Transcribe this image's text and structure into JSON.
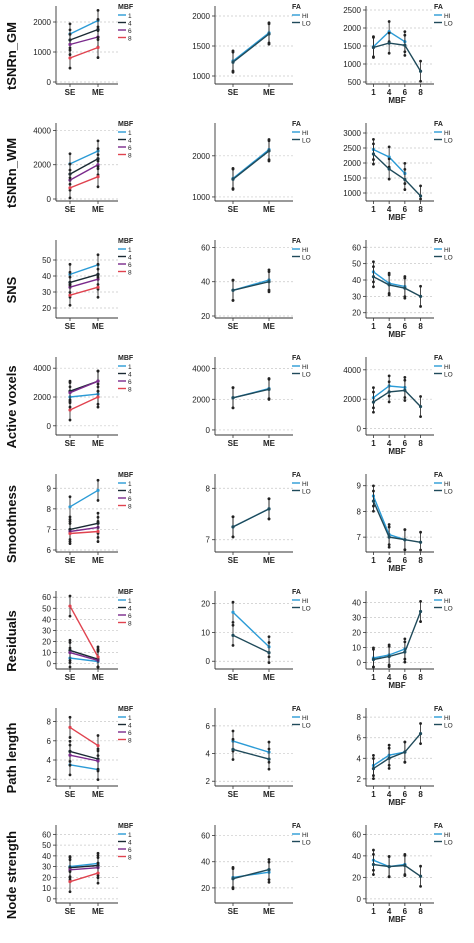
{
  "row_labels": [
    "tSNRn_GM",
    "tSNRn_WM",
    "SNS",
    "Active voxels",
    "Smoothness",
    "Residuals",
    "Path length",
    "Node strength"
  ],
  "legend_titles": {
    "mbf": "MBF",
    "fa": "FA"
  },
  "legend_mbf": [
    "1",
    "4",
    "6",
    "8"
  ],
  "legend_fa": [
    "HI",
    "LO"
  ],
  "colors": {
    "mbf_1": "#2b9bd6",
    "mbf_4": "#1a2a33",
    "mbf_6": "#7a2a8c",
    "mbf_8": "#e0434f",
    "fa_hi": "#2b9bd6",
    "fa_lo": "#1f4a5a",
    "grid": "#c8c8c8",
    "axis": "#333333"
  },
  "chart_data": [
    {
      "row": "tSNRn_GM",
      "col": "MBF by SE/ME",
      "type": "line",
      "categories": [
        "SE",
        "ME"
      ],
      "yticks": [
        0,
        1000,
        2000
      ],
      "ylim": [
        0,
        2400
      ],
      "series": [
        {
          "name": "1",
          "values": [
            1600,
            2050
          ]
        },
        {
          "name": "4",
          "values": [
            1400,
            1750
          ]
        },
        {
          "name": "6",
          "values": [
            1250,
            1500
          ]
        },
        {
          "name": "8",
          "values": [
            800,
            1150
          ]
        }
      ]
    },
    {
      "row": "tSNRn_GM",
      "col": "FA by SE/ME",
      "type": "line",
      "categories": [
        "SE",
        "ME"
      ],
      "yticks": [
        1000,
        1500,
        2000
      ],
      "ylim": [
        900,
        2100
      ],
      "series": [
        {
          "name": "HI",
          "values": [
            1250,
            1720
          ]
        },
        {
          "name": "LO",
          "values": [
            1230,
            1700
          ]
        }
      ]
    },
    {
      "row": "tSNRn_GM",
      "col": "FA by MBF",
      "type": "line",
      "categories": [
        "1",
        "4",
        "6",
        "8"
      ],
      "xlabel": "MBF",
      "yticks": [
        500,
        1000,
        1500,
        2000,
        2500
      ],
      "ylim": [
        500,
        2500
      ],
      "series": [
        {
          "name": "HI",
          "values": [
            1480,
            1900,
            1620,
            null
          ]
        },
        {
          "name": "LO",
          "values": [
            1460,
            1580,
            1520,
            800
          ]
        }
      ]
    },
    {
      "row": "tSNRn_WM",
      "col": "MBF by SE/ME",
      "type": "line",
      "categories": [
        "SE",
        "ME"
      ],
      "yticks": [
        0,
        2000,
        4000
      ],
      "ylim": [
        0,
        4200
      ],
      "series": [
        {
          "name": "1",
          "values": [
            2050,
            2800
          ]
        },
        {
          "name": "4",
          "values": [
            1450,
            2350
          ]
        },
        {
          "name": "6",
          "values": [
            1100,
            2000
          ]
        },
        {
          "name": "8",
          "values": [
            650,
            1300
          ]
        }
      ]
    },
    {
      "row": "tSNRn_WM",
      "col": "FA by SE/ME",
      "type": "line",
      "categories": [
        "SE",
        "ME"
      ],
      "yticks": [
        1000,
        2000
      ],
      "ylim": [
        950,
        2700
      ],
      "series": [
        {
          "name": "HI",
          "values": [
            1450,
            2150
          ]
        },
        {
          "name": "LO",
          "values": [
            1430,
            2120
          ]
        }
      ]
    },
    {
      "row": "tSNRn_WM",
      "col": "FA by MBF",
      "type": "line",
      "categories": [
        "1",
        "4",
        "6",
        "8"
      ],
      "xlabel": "MBF",
      "yticks": [
        1000,
        1500,
        2000,
        2500,
        3000
      ],
      "ylim": [
        800,
        3200
      ],
      "series": [
        {
          "name": "HI",
          "values": [
            2450,
            2200,
            1650,
            null
          ]
        },
        {
          "name": "LO",
          "values": [
            2300,
            1800,
            1450,
            900
          ]
        }
      ]
    },
    {
      "row": "SNS",
      "col": "MBF by SE/ME",
      "type": "line",
      "categories": [
        "SE",
        "ME"
      ],
      "yticks": [
        20,
        30,
        40,
        50
      ],
      "ylim": [
        15,
        60
      ],
      "series": [
        {
          "name": "1",
          "values": [
            41,
            47
          ]
        },
        {
          "name": "4",
          "values": [
            36,
            41
          ]
        },
        {
          "name": "6",
          "values": [
            33,
            38
          ]
        },
        {
          "name": "8",
          "values": [
            28,
            33
          ]
        }
      ]
    },
    {
      "row": "SNS",
      "col": "FA by SE/ME",
      "type": "line",
      "categories": [
        "SE",
        "ME"
      ],
      "yticks": [
        20,
        40,
        60
      ],
      "ylim": [
        20,
        62
      ],
      "series": [
        {
          "name": "HI",
          "values": [
            35,
            41
          ]
        },
        {
          "name": "LO",
          "values": [
            35,
            40
          ]
        }
      ]
    },
    {
      "row": "SNS",
      "col": "FA by MBF",
      "type": "line",
      "categories": [
        "1",
        "4",
        "6",
        "8"
      ],
      "xlabel": "MBF",
      "yticks": [
        20,
        30,
        40,
        50,
        60
      ],
      "ylim": [
        18,
        62
      ],
      "series": [
        {
          "name": "HI",
          "values": [
            45,
            38,
            36,
            null
          ]
        },
        {
          "name": "LO",
          "values": [
            42,
            37,
            35,
            30
          ]
        }
      ]
    },
    {
      "row": "Active voxels",
      "col": "MBF by SE/ME",
      "type": "line",
      "categories": [
        "SE",
        "ME"
      ],
      "yticks": [
        0,
        2000,
        4000
      ],
      "ylim": [
        -500,
        4500
      ],
      "series": [
        {
          "name": "1",
          "values": [
            2000,
            2200
          ]
        },
        {
          "name": "4",
          "values": [
            2400,
            3100
          ]
        },
        {
          "name": "6",
          "values": [
            2300,
            3100
          ]
        },
        {
          "name": "8",
          "values": [
            1100,
            2000
          ]
        }
      ]
    },
    {
      "row": "Active voxels",
      "col": "FA by SE/ME",
      "type": "line",
      "categories": [
        "SE",
        "ME"
      ],
      "yticks": [
        0,
        2000,
        4000
      ],
      "ylim": [
        -200,
        4500
      ],
      "series": [
        {
          "name": "HI",
          "values": [
            2100,
            2700
          ]
        },
        {
          "name": "LO",
          "values": [
            2100,
            2650
          ]
        }
      ]
    },
    {
      "row": "Active voxels",
      "col": "FA by MBF",
      "type": "line",
      "categories": [
        "1",
        "4",
        "6",
        "8"
      ],
      "xlabel": "MBF",
      "yticks": [
        0,
        2000,
        4000
      ],
      "ylim": [
        -300,
        4600
      ],
      "series": [
        {
          "name": "HI",
          "values": [
            2100,
            2900,
            2800,
            null
          ]
        },
        {
          "name": "LO",
          "values": [
            1800,
            2500,
            2600,
            1500
          ]
        }
      ]
    },
    {
      "row": "Smoothness",
      "col": "MBF by SE/ME",
      "type": "line",
      "categories": [
        "SE",
        "ME"
      ],
      "yticks": [
        6,
        7,
        8,
        9
      ],
      "ylim": [
        6,
        9.5
      ],
      "series": [
        {
          "name": "1",
          "values": [
            8.1,
            8.9
          ]
        },
        {
          "name": "4",
          "values": [
            7.0,
            7.3
          ]
        },
        {
          "name": "6",
          "values": [
            6.9,
            7.1
          ]
        },
        {
          "name": "8",
          "values": [
            6.8,
            6.9
          ]
        }
      ]
    },
    {
      "row": "Smoothness",
      "col": "FA by SE/ME",
      "type": "line",
      "categories": [
        "SE",
        "ME"
      ],
      "yticks": [
        7,
        8
      ],
      "ylim": [
        6.8,
        8.2
      ],
      "series": [
        {
          "name": "HI",
          "values": [
            7.25,
            7.6
          ]
        },
        {
          "name": "LO",
          "values": [
            7.25,
            7.6
          ]
        }
      ]
    },
    {
      "row": "Smoothness",
      "col": "FA by MBF",
      "type": "line",
      "categories": [
        "1",
        "4",
        "6",
        "8"
      ],
      "xlabel": "MBF",
      "yticks": [
        7,
        8,
        9
      ],
      "ylim": [
        6.5,
        9.3
      ],
      "series": [
        {
          "name": "HI",
          "values": [
            8.6,
            7.1,
            6.9,
            null
          ]
        },
        {
          "name": "LO",
          "values": [
            8.4,
            7.0,
            6.9,
            6.8
          ]
        }
      ]
    },
    {
      "row": "Residuals",
      "col": "MBF by SE/ME",
      "type": "line",
      "categories": [
        "SE",
        "ME"
      ],
      "yticks": [
        0,
        10,
        20,
        30,
        40,
        50,
        60
      ],
      "ylim": [
        -3,
        62
      ],
      "series": [
        {
          "name": "1",
          "values": [
            5,
            2
          ]
        },
        {
          "name": "4",
          "values": [
            12,
            4
          ]
        },
        {
          "name": "6",
          "values": [
            10,
            3
          ]
        },
        {
          "name": "8",
          "values": [
            52,
            6
          ]
        }
      ]
    },
    {
      "row": "Residuals",
      "col": "FA by SE/ME",
      "type": "line",
      "categories": [
        "SE",
        "ME"
      ],
      "yticks": [
        0,
        10,
        20
      ],
      "ylim": [
        -2,
        23
      ],
      "series": [
        {
          "name": "HI",
          "values": [
            17,
            5
          ]
        },
        {
          "name": "LO",
          "values": [
            9,
            3
          ]
        }
      ]
    },
    {
      "row": "Residuals",
      "col": "FA by MBF",
      "type": "line",
      "categories": [
        "1",
        "4",
        "6",
        "8"
      ],
      "xlabel": "MBF",
      "yticks": [
        0,
        10,
        20,
        30,
        40
      ],
      "ylim": [
        -3,
        45
      ],
      "series": [
        {
          "name": "HI",
          "values": [
            3,
            5,
            9,
            null
          ]
        },
        {
          "name": "LO",
          "values": [
            2,
            4,
            7,
            34
          ]
        }
      ]
    },
    {
      "row": "Path length",
      "col": "MBF by SE/ME",
      "type": "line",
      "categories": [
        "SE",
        "ME"
      ],
      "yticks": [
        2,
        4,
        6,
        8
      ],
      "ylim": [
        1.5,
        9
      ],
      "series": [
        {
          "name": "1",
          "values": [
            3.5,
            3.0
          ]
        },
        {
          "name": "4",
          "values": [
            4.9,
            4.1
          ]
        },
        {
          "name": "6",
          "values": [
            4.5,
            3.9
          ]
        },
        {
          "name": "8",
          "values": [
            7.4,
            5.5
          ]
        }
      ]
    },
    {
      "row": "Path length",
      "col": "FA by SE/ME",
      "type": "line",
      "categories": [
        "SE",
        "ME"
      ],
      "yticks": [
        2,
        4,
        6
      ],
      "ylim": [
        1.8,
        7
      ],
      "series": [
        {
          "name": "HI",
          "values": [
            4.9,
            4.1
          ]
        },
        {
          "name": "LO",
          "values": [
            4.3,
            3.6
          ]
        }
      ]
    },
    {
      "row": "Path length",
      "col": "FA by MBF",
      "type": "line",
      "categories": [
        "1",
        "4",
        "6",
        "8"
      ],
      "xlabel": "MBF",
      "yticks": [
        2,
        4,
        6,
        8
      ],
      "ylim": [
        1.5,
        8.5
      ],
      "series": [
        {
          "name": "HI",
          "values": [
            3.3,
            4.3,
            4.6,
            null
          ]
        },
        {
          "name": "LO",
          "values": [
            3.0,
            4.0,
            4.6,
            6.4
          ]
        }
      ]
    },
    {
      "row": "Node strength",
      "col": "MBF by SE/ME",
      "type": "line",
      "categories": [
        "SE",
        "ME"
      ],
      "yticks": [
        0,
        10,
        20,
        30,
        40,
        50,
        60
      ],
      "ylim": [
        -2,
        65
      ],
      "series": [
        {
          "name": "1",
          "values": [
            30,
            33
          ]
        },
        {
          "name": "4",
          "values": [
            29,
            31
          ]
        },
        {
          "name": "6",
          "values": [
            27,
            29
          ]
        },
        {
          "name": "8",
          "values": [
            16,
            24
          ]
        }
      ]
    },
    {
      "row": "Node strength",
      "col": "FA by SE/ME",
      "type": "line",
      "categories": [
        "SE",
        "ME"
      ],
      "yticks": [
        20,
        40,
        60
      ],
      "ylim": [
        10,
        65
      ],
      "series": [
        {
          "name": "HI",
          "values": [
            28,
            32
          ]
        },
        {
          "name": "LO",
          "values": [
            27,
            34
          ]
        }
      ]
    },
    {
      "row": "Node strength",
      "col": "FA by MBF",
      "type": "line",
      "categories": [
        "1",
        "4",
        "6",
        "8"
      ],
      "xlabel": "MBF",
      "yticks": [
        0,
        20,
        40,
        60
      ],
      "ylim": [
        -2,
        65
      ],
      "series": [
        {
          "name": "HI",
          "values": [
            36,
            30,
            32,
            null
          ]
        },
        {
          "name": "LO",
          "values": [
            32,
            30,
            31,
            21
          ]
        }
      ]
    }
  ]
}
